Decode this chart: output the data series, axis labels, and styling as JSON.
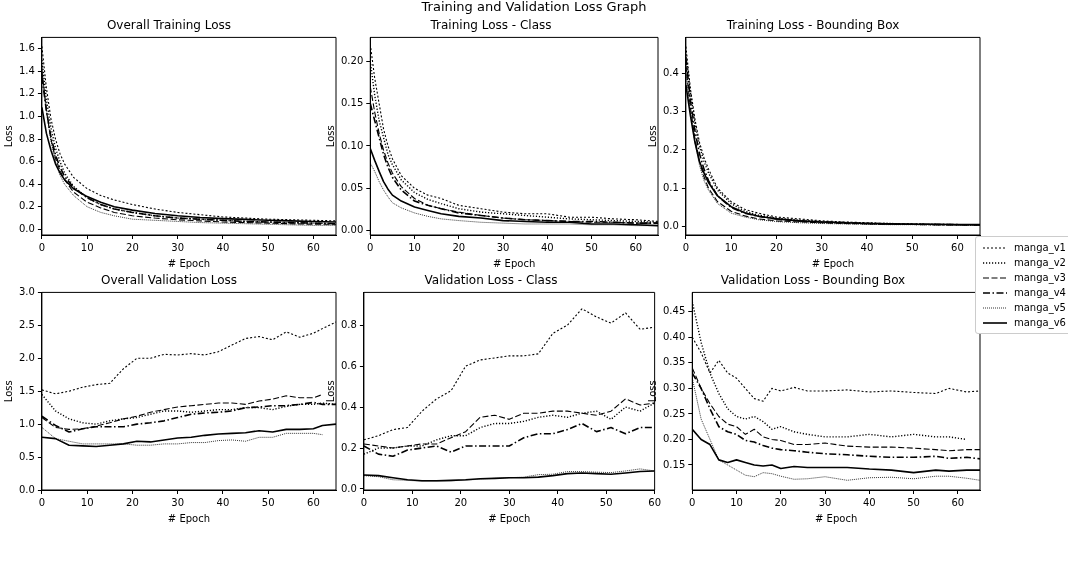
{
  "chart_data": [
    {
      "type": "line",
      "title": "Overall Training Loss",
      "xlabel": "# Epoch",
      "ylabel": "Loss",
      "annotations": [
        "Training and Validation Loss Graph"
      ],
      "grid": false,
      "xlim": [
        0,
        65
      ],
      "xticks": [
        0,
        10,
        20,
        30,
        40,
        50,
        60
      ],
      "ylim": [
        -0.05,
        1.7
      ],
      "yticks": [
        {
          "value": 0,
          "label": "0.0"
        },
        0.2,
        0.4,
        0.6,
        0.8,
        {
          "value": 1,
          "label": "1.0"
        },
        1.2,
        1.4,
        1.6
      ],
      "x": [
        0,
        1,
        2,
        3,
        4,
        5,
        7,
        10,
        13,
        16,
        20,
        25,
        30,
        35,
        40,
        45,
        50,
        55,
        60,
        65
      ],
      "series": [
        {
          "color": "#000000",
          "line_style": "dotted",
          "values": [
            1.62,
            1.25,
            0.98,
            0.8,
            0.67,
            0.58,
            0.46,
            0.36,
            0.3,
            0.26,
            0.22,
            0.18,
            0.15,
            0.13,
            0.11,
            0.1,
            0.09,
            0.085,
            0.08,
            0.075
          ]
        },
        {
          "color": "#000000",
          "line_style": "dotted",
          "values": [
            1.5,
            1.15,
            0.9,
            0.72,
            0.6,
            0.5,
            0.38,
            0.28,
            0.22,
            0.18,
            0.15,
            0.12,
            0.1,
            0.09,
            0.08,
            0.07,
            0.065,
            0.06,
            0.055,
            0.05
          ]
        },
        {
          "color": "#000000",
          "line_style": "dashed",
          "values": [
            1.4,
            1.05,
            0.8,
            0.63,
            0.52,
            0.44,
            0.33,
            0.24,
            0.19,
            0.15,
            0.12,
            0.1,
            0.085,
            0.075,
            0.065,
            0.06,
            0.055,
            0.05,
            0.045,
            0.045
          ]
        },
        {
          "color": "#000000",
          "line_style": "dashed",
          "values": [
            1.35,
            1.05,
            0.82,
            0.66,
            0.55,
            0.47,
            0.37,
            0.28,
            0.22,
            0.18,
            0.15,
            0.12,
            0.1,
            0.09,
            0.08,
            0.07,
            0.065,
            0.06,
            0.055,
            0.05
          ]
        },
        {
          "color": "#000000",
          "line_style": "dotted",
          "values": [
            1.45,
            1.05,
            0.78,
            0.6,
            0.48,
            0.4,
            0.3,
            0.2,
            0.15,
            0.12,
            0.09,
            0.08,
            0.07,
            0.06,
            0.055,
            0.05,
            0.045,
            0.04,
            0.035,
            0.035
          ]
        },
        {
          "color": "#000000",
          "line_style": "solid",
          "values": [
            1.08,
            0.85,
            0.7,
            0.58,
            0.5,
            0.44,
            0.36,
            0.29,
            0.24,
            0.2,
            0.17,
            0.14,
            0.12,
            0.105,
            0.095,
            0.088,
            0.08,
            0.075,
            0.07,
            0.065
          ]
        }
      ]
    },
    {
      "type": "line",
      "title": "Training Loss - Class",
      "xlabel": "# Epoch",
      "ylabel": "Loss",
      "grid": false,
      "xlim": [
        0,
        65
      ],
      "xticks": [
        0,
        10,
        20,
        30,
        40,
        50,
        60
      ],
      "ylim": [
        -0.005,
        0.228
      ],
      "yticks": [
        {
          "value": 0,
          "label": "0.00"
        },
        0.05,
        {
          "value": 0.1,
          "label": "0.10"
        },
        0.15,
        {
          "value": 0.2,
          "label": "0.20"
        }
      ],
      "x": [
        0,
        1,
        2,
        3,
        4,
        5,
        7,
        10,
        13,
        16,
        20,
        25,
        30,
        35,
        40,
        45,
        50,
        55,
        60,
        65
      ],
      "series": [
        {
          "color": "#000000",
          "line_style": "dotted",
          "values": [
            0.22,
            0.18,
            0.15,
            0.12,
            0.1,
            0.085,
            0.065,
            0.05,
            0.042,
            0.038,
            0.03,
            0.026,
            0.022,
            0.02,
            0.02,
            0.016,
            0.016,
            0.014,
            0.013,
            0.011
          ]
        },
        {
          "color": "#000000",
          "line_style": "dotted",
          "values": [
            0.2,
            0.16,
            0.13,
            0.11,
            0.09,
            0.078,
            0.06,
            0.045,
            0.037,
            0.032,
            0.026,
            0.022,
            0.02,
            0.018,
            0.016,
            0.014,
            0.013,
            0.012,
            0.011,
            0.01
          ]
        },
        {
          "color": "#000000",
          "line_style": "dashed",
          "values": [
            0.17,
            0.14,
            0.115,
            0.095,
            0.08,
            0.068,
            0.052,
            0.038,
            0.03,
            0.026,
            0.022,
            0.018,
            0.015,
            0.013,
            0.012,
            0.011,
            0.01,
            0.01,
            0.009,
            0.009
          ]
        },
        {
          "color": "#000000",
          "line_style": "dashed",
          "values": [
            0.15,
            0.13,
            0.11,
            0.09,
            0.075,
            0.063,
            0.048,
            0.035,
            0.03,
            0.026,
            0.021,
            0.018,
            0.015,
            0.013,
            0.012,
            0.011,
            0.011,
            0.01,
            0.009,
            0.009
          ]
        },
        {
          "color": "#000000",
          "line_style": "dotted",
          "values": [
            0.08,
            0.07,
            0.058,
            0.048,
            0.04,
            0.033,
            0.027,
            0.021,
            0.017,
            0.014,
            0.012,
            0.01,
            0.009,
            0.008,
            0.008,
            0.008,
            0.007,
            0.007,
            0.006,
            0.006
          ]
        },
        {
          "color": "#000000",
          "line_style": "solid",
          "values": [
            0.097,
            0.083,
            0.07,
            0.058,
            0.049,
            0.042,
            0.035,
            0.028,
            0.024,
            0.02,
            0.017,
            0.015,
            0.012,
            0.011,
            0.01,
            0.01,
            0.008,
            0.008,
            0.007,
            0.006
          ]
        }
      ]
    },
    {
      "type": "line",
      "title": "Training Loss - Bounding Box",
      "xlabel": "# Epoch",
      "ylabel": "Loss",
      "grid": false,
      "legend": "right",
      "xlim": [
        0,
        65
      ],
      "xticks": [
        0,
        10,
        20,
        30,
        40,
        50,
        60
      ],
      "ylim": [
        -0.022,
        0.494
      ],
      "yticks": [
        {
          "value": 0,
          "label": "0.0"
        },
        0.1,
        0.2,
        0.3,
        0.4
      ],
      "x": [
        0,
        1,
        2,
        3,
        4,
        5,
        7,
        10,
        13,
        16,
        20,
        25,
        30,
        35,
        40,
        45,
        50,
        55,
        60,
        65
      ],
      "series": [
        {
          "name": "manga_v1",
          "color": "#000000",
          "line_style": "dotted",
          "values": [
            0.47,
            0.36,
            0.28,
            0.22,
            0.18,
            0.15,
            0.1,
            0.065,
            0.045,
            0.035,
            0.025,
            0.02,
            0.015,
            0.012,
            0.01,
            0.008,
            0.007,
            0.006,
            0.005,
            0.005
          ]
        },
        {
          "name": "manga_v2",
          "color": "#000000",
          "line_style": "dotted",
          "values": [
            0.45,
            0.35,
            0.27,
            0.21,
            0.17,
            0.14,
            0.095,
            0.06,
            0.04,
            0.03,
            0.022,
            0.017,
            0.013,
            0.011,
            0.009,
            0.008,
            0.007,
            0.006,
            0.005,
            0.005
          ]
        },
        {
          "name": "manga_v3",
          "color": "#000000",
          "line_style": "dashed",
          "values": [
            0.42,
            0.31,
            0.23,
            0.17,
            0.13,
            0.1,
            0.065,
            0.04,
            0.028,
            0.02,
            0.015,
            0.012,
            0.01,
            0.008,
            0.007,
            0.006,
            0.006,
            0.005,
            0.005,
            0.004
          ]
        },
        {
          "name": "manga_v4",
          "color": "#000000",
          "line_style": "dashed",
          "values": [
            0.44,
            0.33,
            0.25,
            0.19,
            0.15,
            0.12,
            0.08,
            0.05,
            0.035,
            0.027,
            0.02,
            0.015,
            0.012,
            0.01,
            0.008,
            0.007,
            0.006,
            0.005,
            0.005,
            0.004
          ]
        },
        {
          "name": "manga_v5",
          "color": "#000000",
          "line_style": "dotted",
          "values": [
            0.4,
            0.3,
            0.22,
            0.16,
            0.12,
            0.095,
            0.06,
            0.035,
            0.025,
            0.018,
            0.013,
            0.01,
            0.008,
            0.007,
            0.006,
            0.005,
            0.005,
            0.004,
            0.004,
            0.004
          ]
        },
        {
          "name": "manga_v6",
          "color": "#000000",
          "line_style": "solid",
          "values": [
            0.37,
            0.29,
            0.22,
            0.17,
            0.14,
            0.115,
            0.08,
            0.052,
            0.036,
            0.027,
            0.02,
            0.015,
            0.012,
            0.01,
            0.008,
            0.007,
            0.006,
            0.006,
            0.005,
            0.005
          ]
        }
      ]
    },
    {
      "type": "line",
      "title": "Overall Validation Loss",
      "xlabel": "# Epoch",
      "ylabel": "Loss",
      "grid": false,
      "xlim": [
        0,
        65
      ],
      "xticks": [
        0,
        10,
        20,
        30,
        40,
        50,
        60
      ],
      "ylim": [
        0,
        3
      ],
      "yticks": [
        {
          "value": 0,
          "label": "0.0"
        },
        0.5,
        {
          "value": 1,
          "label": "1.0"
        },
        1.5,
        {
          "value": 2,
          "label": "2.0"
        },
        2.5,
        {
          "value": 3,
          "label": "3.0"
        }
      ],
      "x": [
        0,
        3,
        6,
        9,
        12,
        15,
        18,
        21,
        24,
        27,
        30,
        33,
        36,
        39,
        42,
        45,
        48,
        51,
        54,
        57,
        60,
        62,
        65
      ],
      "series": [
        {
          "color": "#000000",
          "line_style": "dotted",
          "values": [
            1.52,
            1.46,
            1.5,
            1.56,
            1.6,
            1.62,
            1.84,
            2.0,
            2.0,
            2.06,
            2.05,
            2.07,
            2.05,
            2.1,
            2.2,
            2.3,
            2.33,
            2.28,
            2.4,
            2.32,
            2.38,
            2.45,
            2.55
          ]
        },
        {
          "color": "#000000",
          "line_style": "dotted",
          "values": [
            1.45,
            1.2,
            1.08,
            1.02,
            1.0,
            1.05,
            1.08,
            1.1,
            1.15,
            1.2,
            1.2,
            1.18,
            1.2,
            1.22,
            1.22,
            1.25,
            1.25,
            1.22,
            1.27,
            1.3,
            1.3,
            1.32,
            1.3
          ]
        },
        {
          "color": "#000000",
          "line_style": "dashed",
          "values": [
            1.1,
            0.95,
            0.92,
            0.93,
            0.97,
            1.02,
            1.08,
            1.12,
            1.18,
            1.22,
            1.26,
            1.28,
            1.3,
            1.32,
            1.32,
            1.3,
            1.35,
            1.38,
            1.43,
            1.4,
            1.4,
            1.45,
            null
          ]
        },
        {
          "color": "#000000",
          "line_style": "dashed",
          "values": [
            1.12,
            0.98,
            0.88,
            0.93,
            0.96,
            0.96,
            0.96,
            1.0,
            1.02,
            1.05,
            1.1,
            1.15,
            1.17,
            1.18,
            1.2,
            1.25,
            1.26,
            1.28,
            1.28,
            1.3,
            1.33,
            1.3,
            1.3
          ]
        },
        {
          "color": "#000000",
          "line_style": "dotted",
          "values": [
            0.95,
            0.78,
            0.74,
            0.7,
            0.7,
            0.7,
            0.7,
            0.68,
            0.68,
            0.7,
            0.7,
            0.72,
            0.72,
            0.75,
            0.76,
            0.74,
            0.8,
            0.8,
            0.86,
            0.86,
            0.86,
            0.84,
            null
          ]
        },
        {
          "color": "#000000",
          "line_style": "solid",
          "values": [
            0.8,
            0.78,
            0.68,
            0.67,
            0.66,
            0.68,
            0.7,
            0.74,
            0.73,
            0.76,
            0.79,
            0.8,
            0.83,
            0.85,
            0.86,
            0.87,
            0.9,
            0.88,
            0.92,
            0.92,
            0.93,
            0.98,
            1.0
          ]
        }
      ]
    },
    {
      "type": "line",
      "title": "Validation Loss - Class",
      "xlabel": "# Epoch",
      "ylabel": "Loss",
      "grid": false,
      "xlim": [
        0,
        60
      ],
      "xticks": [
        0,
        10,
        20,
        30,
        40,
        50,
        60
      ],
      "ylim": [
        -0.005,
        0.96
      ],
      "yticks": [
        {
          "value": 0,
          "label": "0.0"
        },
        0.2,
        0.4,
        0.6,
        0.8
      ],
      "x": [
        0,
        3,
        6,
        9,
        12,
        15,
        18,
        21,
        24,
        27,
        30,
        33,
        36,
        39,
        42,
        45,
        48,
        51,
        54,
        57,
        60
      ],
      "series": [
        {
          "color": "#000000",
          "line_style": "dotted",
          "values": [
            0.24,
            0.26,
            0.29,
            0.3,
            0.38,
            0.44,
            0.48,
            0.6,
            0.63,
            0.64,
            0.65,
            0.65,
            0.66,
            0.76,
            0.8,
            0.88,
            0.84,
            0.81,
            0.86,
            0.78,
            0.79
          ]
        },
        {
          "color": "#000000",
          "line_style": "dotted",
          "values": [
            0.17,
            0.2,
            0.2,
            0.21,
            0.21,
            0.24,
            0.26,
            0.26,
            0.3,
            0.32,
            0.32,
            0.33,
            0.35,
            0.36,
            0.35,
            0.37,
            0.38,
            0.34,
            0.4,
            0.38,
            0.42
          ]
        },
        {
          "color": "#000000",
          "line_style": "dashed",
          "values": [
            0.22,
            0.21,
            0.2,
            0.21,
            0.22,
            0.22,
            0.25,
            0.28,
            0.35,
            0.36,
            0.34,
            0.37,
            0.37,
            0.38,
            0.38,
            0.37,
            0.36,
            0.38,
            0.44,
            0.41,
            0.42
          ]
        },
        {
          "color": "#000000",
          "line_style": "dashed",
          "values": [
            0.21,
            0.17,
            0.16,
            0.19,
            0.2,
            0.21,
            0.18,
            0.21,
            0.21,
            0.21,
            0.21,
            0.25,
            0.27,
            0.27,
            0.29,
            0.32,
            0.28,
            0.3,
            0.27,
            0.3,
            0.3
          ]
        },
        {
          "color": "#000000",
          "line_style": "dotted",
          "values": [
            0.065,
            0.06,
            0.045,
            0.042,
            0.038,
            0.038,
            0.04,
            0.043,
            0.048,
            0.052,
            0.055,
            0.058,
            0.07,
            0.072,
            0.085,
            0.085,
            0.082,
            0.08,
            0.088,
            0.098,
            0.088
          ]
        },
        {
          "color": "#000000",
          "line_style": "solid",
          "values": [
            0.068,
            0.065,
            0.055,
            0.045,
            0.04,
            0.04,
            0.042,
            0.045,
            0.05,
            0.052,
            0.055,
            0.055,
            0.058,
            0.065,
            0.075,
            0.078,
            0.075,
            0.072,
            0.078,
            0.085,
            0.088
          ]
        }
      ]
    },
    {
      "type": "line",
      "title": "Validation Loss - Bounding Box",
      "xlabel": "# Epoch",
      "ylabel": "Loss",
      "grid": false,
      "xlim": [
        0,
        65
      ],
      "xticks": [
        0,
        10,
        20,
        30,
        40,
        50,
        60
      ],
      "ylim": [
        0.101,
        0.488
      ],
      "yticks": [
        0.15,
        {
          "value": 0.2,
          "label": "0.20"
        },
        0.25,
        {
          "value": 0.3,
          "label": "0.30"
        },
        0.35,
        {
          "value": 0.4,
          "label": "0.40"
        },
        0.45
      ],
      "x": [
        0,
        2,
        4,
        6,
        8,
        10,
        12,
        14,
        16,
        18,
        20,
        23,
        26,
        30,
        35,
        40,
        45,
        50,
        55,
        58,
        62,
        65
      ],
      "series": [
        {
          "color": "#000000",
          "line_style": "dotted",
          "values": [
            0.4,
            0.37,
            0.33,
            0.355,
            0.33,
            0.32,
            0.3,
            0.28,
            0.275,
            0.3,
            0.295,
            0.302,
            0.295,
            0.295,
            0.297,
            0.293,
            0.295,
            0.292,
            0.29,
            0.3,
            0.293,
            0.295
          ]
        },
        {
          "color": "#000000",
          "line_style": "dotted",
          "values": [
            0.47,
            0.39,
            0.33,
            0.29,
            0.26,
            0.245,
            0.24,
            0.245,
            0.235,
            0.22,
            0.225,
            0.215,
            0.21,
            0.205,
            0.205,
            0.21,
            0.205,
            0.21,
            0.205,
            0.205,
            0.2,
            null
          ]
        },
        {
          "color": "#000000",
          "line_style": "dashed",
          "values": [
            0.34,
            0.3,
            0.27,
            0.245,
            0.23,
            0.225,
            0.21,
            0.22,
            0.205,
            0.2,
            0.198,
            0.19,
            0.19,
            0.193,
            0.187,
            0.185,
            0.185,
            0.183,
            0.18,
            0.178,
            0.18,
            0.18
          ]
        },
        {
          "color": "#000000",
          "line_style": "dashed",
          "values": [
            0.33,
            0.3,
            0.26,
            0.225,
            0.215,
            0.21,
            0.198,
            0.195,
            0.188,
            0.183,
            0.18,
            0.178,
            0.175,
            0.172,
            0.17,
            0.167,
            0.165,
            0.165,
            0.167,
            0.163,
            0.165,
            0.162
          ]
        },
        {
          "color": "#000000",
          "line_style": "dotted",
          "values": [
            0.32,
            0.24,
            0.2,
            0.16,
            0.15,
            0.14,
            0.13,
            0.127,
            0.135,
            0.133,
            0.128,
            0.122,
            0.123,
            0.127,
            0.12,
            0.125,
            0.126,
            0.123,
            0.128,
            0.128,
            0.124,
            0.12
          ]
        },
        {
          "color": "#000000",
          "line_style": "solid",
          "values": [
            0.22,
            0.2,
            0.19,
            0.16,
            0.155,
            0.16,
            0.155,
            0.15,
            0.148,
            0.15,
            0.143,
            0.147,
            0.145,
            0.145,
            0.145,
            0.142,
            0.14,
            0.135,
            0.14,
            0.138,
            0.14,
            0.14
          ]
        }
      ]
    }
  ]
}
